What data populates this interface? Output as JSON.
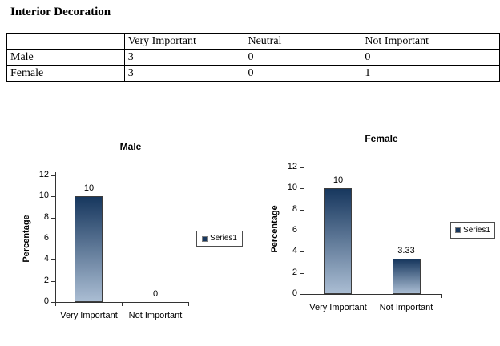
{
  "page": {
    "title": "Interior Decoration"
  },
  "table": {
    "headers": [
      "",
      "Very Important",
      "Neutral",
      "Not Important"
    ],
    "rows": [
      {
        "label": "Male",
        "values": [
          "3",
          "0",
          "0"
        ]
      },
      {
        "label": "Female",
        "values": [
          "3",
          "0",
          "1"
        ]
      }
    ]
  },
  "chart_data": [
    {
      "id": "male",
      "type": "bar",
      "title": "Male",
      "categories": [
        "Very Important",
        "Not Important"
      ],
      "values": [
        10,
        0
      ],
      "data_labels": [
        "10",
        "0"
      ],
      "ylabel": "Percentage",
      "ylim": [
        0,
        12
      ],
      "yticks": [
        0,
        2,
        4,
        6,
        8,
        10,
        12
      ],
      "grid": false,
      "legend": {
        "entries": [
          "Series1"
        ],
        "position": "right"
      },
      "colors": {
        "bar_top": "#17375e",
        "bar_bottom": "#aabdd3",
        "marker": "#17375e"
      }
    },
    {
      "id": "female",
      "type": "bar",
      "title": "Female",
      "categories": [
        "Very Important",
        "Not Important"
      ],
      "values": [
        10,
        3.33
      ],
      "data_labels": [
        "10",
        "3.33"
      ],
      "ylabel": "Percentage",
      "ylim": [
        0,
        12
      ],
      "yticks": [
        0,
        2,
        4,
        6,
        8,
        10,
        12
      ],
      "grid": false,
      "legend": {
        "entries": [
          "Series1"
        ],
        "position": "right"
      },
      "colors": {
        "bar_top": "#17375e",
        "bar_bottom": "#aabdd3",
        "marker": "#17375e"
      }
    }
  ]
}
